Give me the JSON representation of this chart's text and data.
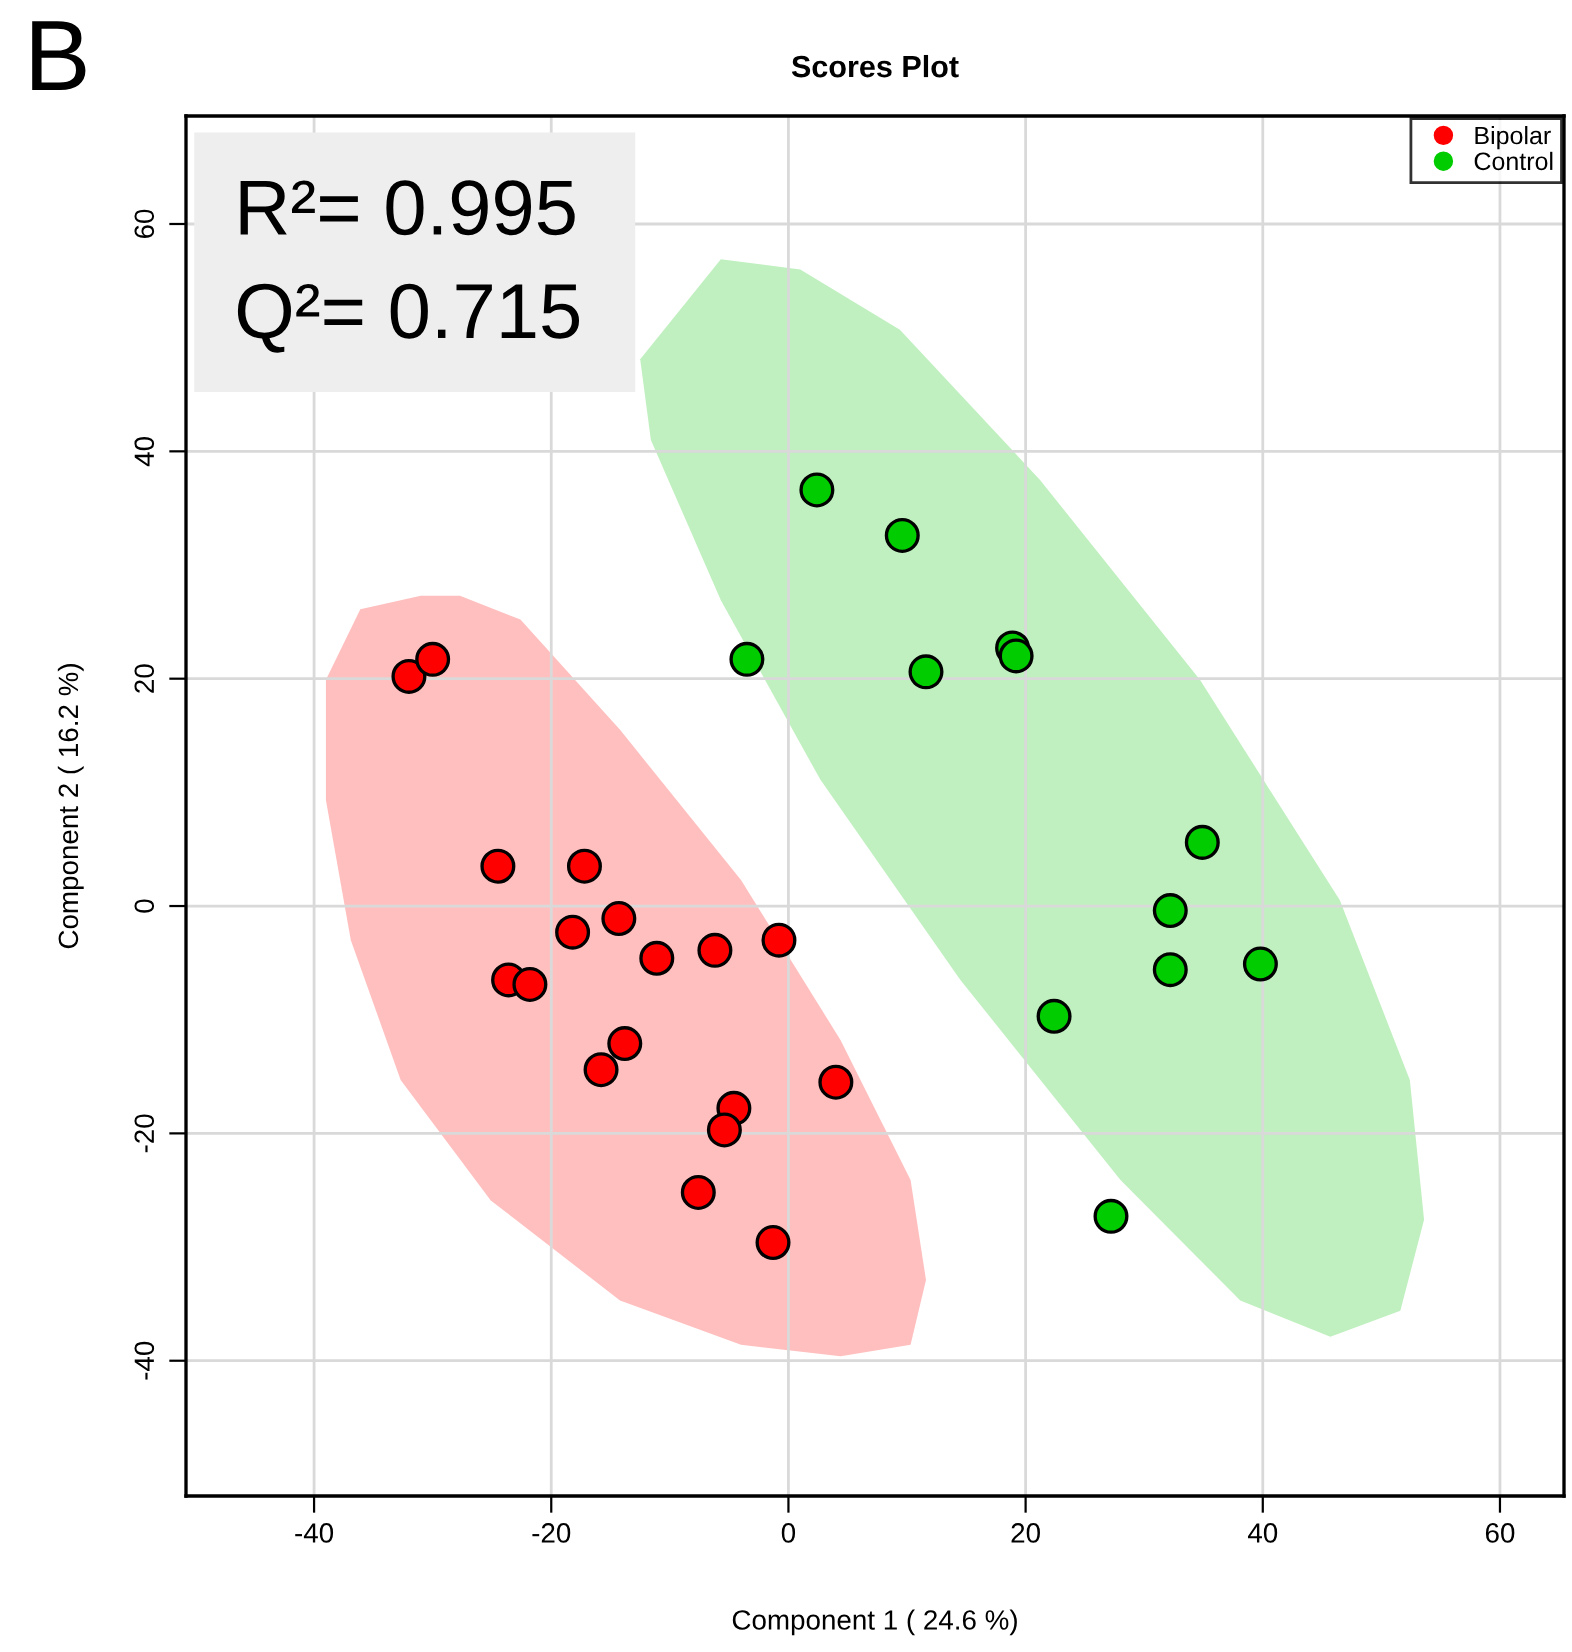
{
  "chart_data": {
    "type": "scatter",
    "title": "Scores Plot",
    "xlabel": "Component 1 ( 24.6 %)",
    "ylabel": "Component 2 ( 16.2 %)",
    "annotations": [
      "B",
      "R²= 0.995",
      "Q²= 0.715"
    ],
    "xlim": [
      -50.8,
      65.4
    ],
    "ylim": [
      -51.9,
      69.5
    ],
    "xticks": [
      -40,
      -20,
      0,
      20,
      40,
      60
    ],
    "yticks": [
      -40,
      -20,
      0,
      20,
      40,
      60
    ],
    "grid": true,
    "legend": "top right",
    "series": [
      {
        "type": "area",
        "color": "#ffbfbf",
        "x": [
          -31.0,
          -36.1,
          -39.0,
          -39.0,
          -36.9,
          -32.7,
          -25.1,
          -14.2,
          -4.0,
          4.4,
          10.3,
          11.6,
          10.3,
          4.4,
          -4.0,
          -14.2,
          -22.6,
          -27.7
        ],
        "values": [
          27.3,
          26.1,
          19.9,
          9.3,
          -3.0,
          -15.3,
          -25.9,
          -34.7,
          -38.6,
          -39.6,
          -38.6,
          -32.9,
          -24.1,
          -11.8,
          2.3,
          15.5,
          25.2,
          27.3
        ]
      },
      {
        "type": "area",
        "color": "#c0f0c0",
        "x": [
          -5.7,
          1.0,
          9.4,
          21.2,
          34.7,
          46.5,
          52.4,
          53.6,
          51.6,
          45.7,
          38.1,
          28.0,
          14.5,
          2.7,
          -5.7,
          -11.6,
          -12.5
        ],
        "values": [
          56.9,
          56.0,
          50.7,
          37.5,
          19.9,
          0.5,
          -15.3,
          -27.6,
          -35.6,
          -37.9,
          -34.7,
          -24.1,
          -6.5,
          11.1,
          26.9,
          41.0,
          48.1
        ]
      },
      {
        "marker": "circle",
        "name": "Bipolar",
        "color": "#ff0000",
        "x": [
          -32.0,
          -30.0,
          -24.5,
          -17.2,
          -23.6,
          -21.8,
          -18.2,
          -14.3,
          -11.1,
          -6.2,
          -0.8,
          -13.8,
          -15.8,
          -4.6,
          -5.4,
          4.0,
          -7.6,
          -1.3
        ],
        "values": [
          20.2,
          21.7,
          3.5,
          3.5,
          -6.5,
          -6.9,
          -2.3,
          -1.1,
          -4.6,
          -3.9,
          -3.0,
          -12.1,
          -14.4,
          -17.8,
          -19.7,
          -15.5,
          -25.2,
          -29.6
        ]
      },
      {
        "marker": "circle",
        "name": "Control",
        "color": "#00cc00",
        "x": [
          2.4,
          9.6,
          -3.5,
          11.6,
          18.9,
          19.2,
          34.9,
          32.2,
          32.2,
          39.8,
          22.4,
          27.2
        ],
        "values": [
          36.6,
          32.6,
          21.7,
          20.6,
          22.7,
          22.0,
          5.6,
          -0.4,
          -5.6,
          -5.1,
          -9.7,
          -27.3
        ]
      }
    ]
  }
}
